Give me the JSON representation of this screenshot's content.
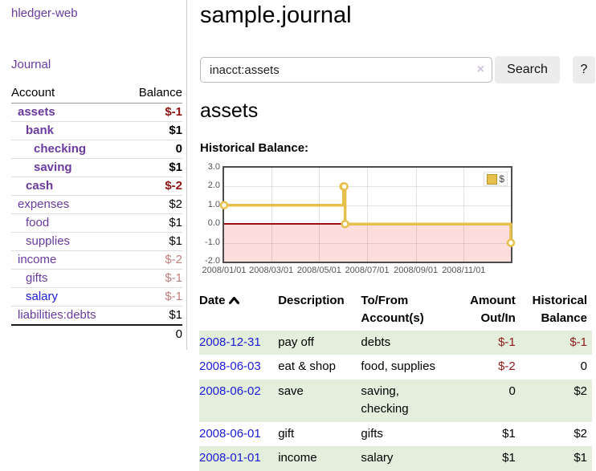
{
  "app": {
    "title": "hledger-web"
  },
  "sidebar": {
    "journal_link": "Journal",
    "accounts_table": {
      "headers": {
        "account": "Account",
        "balance": "Balance"
      },
      "rows": [
        {
          "name": "assets",
          "balance": "$-1",
          "level": 0,
          "bold": true,
          "tone": "neg",
          "link_color": "purple"
        },
        {
          "name": "bank",
          "balance": "$1",
          "level": 1,
          "bold": true,
          "tone": "",
          "link_color": "purple"
        },
        {
          "name": "checking",
          "balance": "0",
          "level": 2,
          "bold": true,
          "tone": "",
          "link_color": "purple"
        },
        {
          "name": "saving",
          "balance": "$1",
          "level": 2,
          "bold": true,
          "tone": "",
          "link_color": "purple"
        },
        {
          "name": "cash",
          "balance": "$-2",
          "level": 1,
          "bold": true,
          "tone": "neg",
          "link_color": "purple"
        },
        {
          "name": "expenses",
          "balance": "$2",
          "level": 0,
          "bold": false,
          "tone": "",
          "link_color": "purple"
        },
        {
          "name": "food",
          "balance": "$1",
          "level": 1,
          "bold": false,
          "tone": "",
          "link_color": "purple"
        },
        {
          "name": "supplies",
          "balance": "$1",
          "level": 1,
          "bold": false,
          "tone": "",
          "link_color": "purple"
        },
        {
          "name": "income",
          "balance": "$-2",
          "level": 0,
          "bold": false,
          "tone": "faded",
          "link_color": "purple"
        },
        {
          "name": "gifts",
          "balance": "$-1",
          "level": 1,
          "bold": false,
          "tone": "faded",
          "link_color": "purple"
        },
        {
          "name": "salary",
          "balance": "$-1",
          "level": 1,
          "bold": false,
          "tone": "faded",
          "link_color": "blue"
        },
        {
          "name": "liabilities:debts",
          "balance": "$1",
          "level": 0,
          "bold": false,
          "tone": "",
          "link_color": "purple"
        }
      ],
      "total": "0"
    }
  },
  "main": {
    "title": "sample.journal",
    "search": {
      "value": "inacct:assets",
      "clear_icon": "×",
      "button_label": "Search",
      "help_label": "?"
    },
    "account_heading": "assets",
    "register_table": {
      "headers": [
        {
          "line1": "Date",
          "line2": "",
          "align": "left",
          "sorted": "asc"
        },
        {
          "line1": "Description",
          "line2": "",
          "align": "left"
        },
        {
          "line1": "To/From",
          "line2": "Account(s)",
          "align": "left"
        },
        {
          "line1": "Amount",
          "line2": "Out/In",
          "align": "right"
        },
        {
          "line1": "Historical",
          "line2": "Balance",
          "align": "right"
        }
      ],
      "rows": [
        {
          "date": "2008-12-31",
          "description": "pay off",
          "accounts": "debts",
          "amount": "$-1",
          "balance": "$-1"
        },
        {
          "date": "2008-06-03",
          "description": "eat & shop",
          "accounts": "food, supplies",
          "amount": "$-2",
          "balance": "0"
        },
        {
          "date": "2008-06-02",
          "description": "save",
          "accounts": "saving, checking",
          "amount": "0",
          "balance": "$2"
        },
        {
          "date": "2008-06-01",
          "description": "gift",
          "accounts": "gifts",
          "amount": "$1",
          "balance": "$2"
        },
        {
          "date": "2008-01-01",
          "description": "income",
          "accounts": "salary",
          "amount": "$1",
          "balance": "$1"
        }
      ]
    }
  },
  "chart_data": {
    "type": "line",
    "style": "step",
    "title": "Historical Balance:",
    "series": [
      {
        "name": "$",
        "points": [
          [
            "2008-01-01",
            1
          ],
          [
            "2008-06-01",
            2
          ],
          [
            "2008-06-02",
            2
          ],
          [
            "2008-06-03",
            0
          ],
          [
            "2008-12-31",
            -1
          ]
        ]
      }
    ],
    "xlim": [
      "2008-01-01",
      "2008-12-31"
    ],
    "ylim": [
      -2,
      3
    ],
    "yticks": [
      "3.0",
      "2.0",
      "1.0",
      "0.0",
      "-1.0",
      "-2.0"
    ],
    "ytick_values": [
      3,
      2,
      1,
      0,
      -1,
      -2
    ],
    "xticks": [
      "2008/01/01",
      "2008/03/01",
      "2008/05/01",
      "2008/07/01",
      "2008/09/01",
      "2008/11/01"
    ],
    "legend": {
      "position": "top-right",
      "entries": [
        "$"
      ]
    },
    "grid": true,
    "zero_line": true,
    "negative_region_shaded": true,
    "colors": {
      "line": "#e6c04a",
      "marker_fill": "#ffffff",
      "legend_border": "#b8962e",
      "negative_fill": "#fedddd",
      "zero_line": "#991111",
      "positive_text": "#000000",
      "negative_text": "#8d1a1a",
      "accent_purple": "#6a3a9e",
      "link_blue": "#1b1bd8",
      "row_stripe": "#e4eedd"
    }
  }
}
